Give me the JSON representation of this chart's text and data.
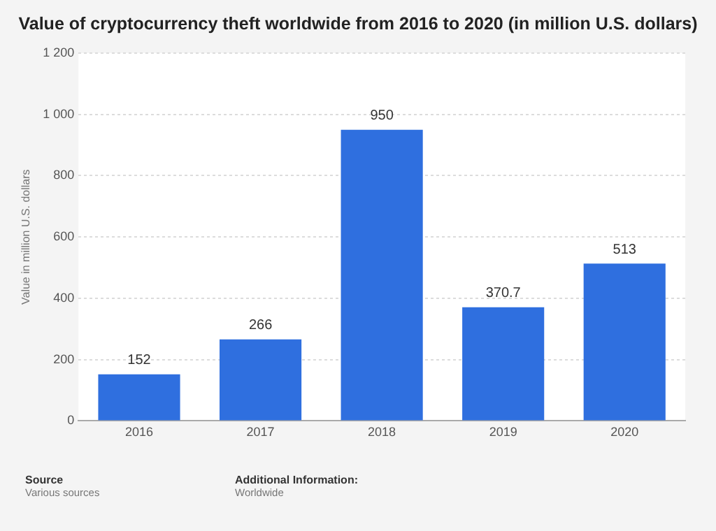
{
  "chart_data": {
    "type": "bar",
    "title": "Value of cryptocurrency theft worldwide from 2016 to 2020 (in million U.S. dollars)",
    "ylabel": "Value in million U.S. dollars",
    "categories": [
      "2016",
      "2017",
      "2018",
      "2019",
      "2020"
    ],
    "values": [
      152,
      266,
      950,
      370.7,
      513
    ],
    "color": "#2f6fdf",
    "ylim": [
      0,
      1200
    ],
    "yticks": [
      0,
      200,
      400,
      600,
      800,
      {
        "value": 1000,
        "label": "1 000"
      },
      {
        "value": 1200,
        "label": "1 200"
      }
    ],
    "grid": "y",
    "data_labels": true,
    "legend": false,
    "annotations": [
      "Source",
      "Various sources",
      "Additional Information:",
      "Worldwide"
    ]
  }
}
